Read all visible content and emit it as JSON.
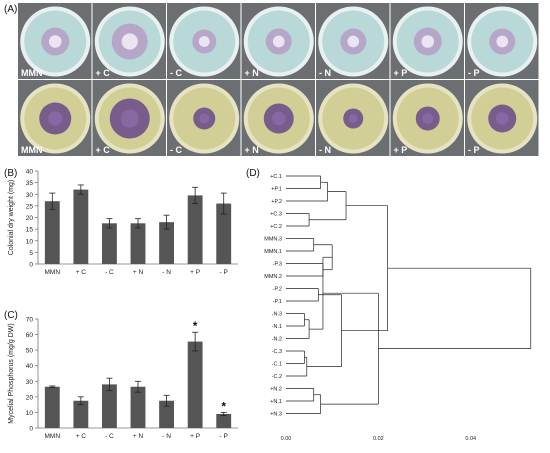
{
  "panel_labels": {
    "a": "(A)",
    "b": "(B)",
    "c": "(C)",
    "d": "(D)"
  },
  "plates": {
    "row1": [
      "MMN",
      "+ C",
      "- C",
      "+ N",
      "- N",
      "+ P",
      "- P"
    ],
    "row2": [
      "MMN",
      "+ C",
      "- C",
      "+ N",
      "- N",
      "+ P",
      "- P"
    ]
  },
  "colors": {
    "bar": "#555555",
    "row1_agar": "#b9d9d8",
    "row1_colony": "#b6a1c6",
    "row2_agar": "#d2cf96",
    "row2_colony": "#6e4f8a",
    "tray": "#6b6f72"
  },
  "chart_data": [
    {
      "type": "bar",
      "panel": "(B)",
      "categories": [
        "MMN",
        "+ C",
        "- C",
        "+ N",
        "- N",
        "+ P",
        "- P"
      ],
      "values": [
        27,
        32,
        17.5,
        17.5,
        18,
        29.5,
        26
      ],
      "errors": [
        3.5,
        2,
        2,
        2,
        3,
        3.5,
        4.5
      ],
      "ylabel": "Colonial dry weight (mg)",
      "ylim": [
        0,
        40
      ],
      "yticks": [
        0,
        5,
        10,
        15,
        20,
        25,
        30,
        35,
        40
      ],
      "annotations": []
    },
    {
      "type": "bar",
      "panel": "(C)",
      "categories": [
        "MMN",
        "+ C",
        "- C",
        "+ N",
        "- N",
        "+ P",
        "- P"
      ],
      "values": [
        26.5,
        17.5,
        28,
        26.5,
        17.5,
        55.5,
        9
      ],
      "errors": [
        0.5,
        2.5,
        4,
        3.5,
        3.5,
        6,
        1
      ],
      "ylabel": "Mycelial Phosphorus (mg/g DW)",
      "ylim": [
        0,
        70
      ],
      "yticks": [
        0,
        10,
        20,
        30,
        40,
        50,
        60,
        70
      ],
      "annotations": [
        "",
        "",
        "",
        "",
        "",
        "*",
        "*"
      ]
    },
    {
      "type": "dendrogram",
      "panel": "(D)",
      "leaves": [
        "+C.1",
        "+P.1",
        "+P.2",
        "+C.3",
        "+C.2",
        "MMN.3",
        "MMN.1",
        "-P.3",
        "MMN.2",
        "-P.2",
        "-P.1",
        "-N.3",
        "-N.1",
        "-N.2",
        "-C.3",
        "-C.1",
        "-C.2",
        "+N.2",
        "+N.1",
        "+N.3"
      ],
      "xticks": [
        "0.00",
        "0.02",
        "0.04"
      ],
      "xlim": [
        0,
        0.055
      ],
      "merges": [
        [
          0,
          1,
          0.0075
        ],
        [
          3,
          4,
          0.005
        ],
        [
          5,
          6,
          0.006
        ],
        [
          7,
          8,
          0.008
        ],
        [
          9,
          10,
          0.007
        ],
        [
          11,
          12,
          0.004
        ],
        [
          14,
          15,
          0.004
        ],
        [
          17,
          18,
          0.006
        ],
        [
          20,
          2,
          0.009
        ],
        [
          22,
          23,
          0.01
        ],
        [
          25,
          13,
          0.005
        ],
        [
          26,
          16,
          0.0045
        ],
        [
          27,
          19,
          0.0075
        ],
        [
          28,
          21,
          0.013
        ],
        [
          31,
          24,
          0.012
        ],
        [
          30,
          29,
          0.008
        ],
        [
          33,
          34,
          0.022
        ],
        [
          35,
          32,
          0.02
        ],
        [
          36,
          37,
          0.053
        ]
      ]
    }
  ]
}
